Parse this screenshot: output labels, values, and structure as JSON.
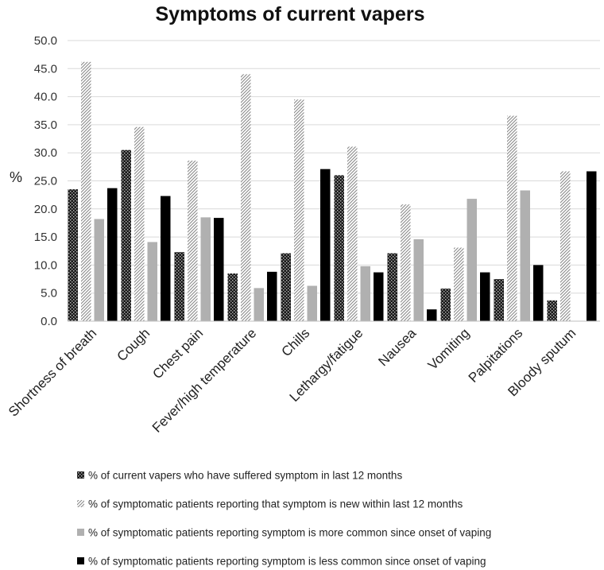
{
  "chart_data": {
    "type": "bar",
    "title": "Symptoms of current vapers",
    "xlabel": "",
    "ylabel": "%",
    "ylim": [
      0,
      50
    ],
    "yticks": [
      "0.0",
      "5.0",
      "10.0",
      "15.0",
      "20.0",
      "25.0",
      "30.0",
      "35.0",
      "40.0",
      "45.0",
      "50.0"
    ],
    "grid": true,
    "legend_position": "bottom",
    "categories": [
      "Shortness of breath",
      "Cough",
      "Chest pain",
      "Fever/high temperature",
      "Chills",
      "Lethargy/fatigue",
      "Nausea",
      "Vomiting",
      "Palpitations",
      "Bloody sputum"
    ],
    "series": [
      {
        "name": "% of current vapers who have suffered symptom in last 12 months",
        "pattern": "crosshatch",
        "color": "#1a1a1a",
        "values": [
          23.5,
          30.5,
          12.3,
          8.5,
          12.1,
          26.0,
          12.1,
          5.8,
          7.5,
          3.7
        ]
      },
      {
        "name": "% of symptomatic patients reporting that symptom is new within last 12 months",
        "pattern": "diagonal",
        "color": "#9a9a9a",
        "values": [
          46.2,
          34.6,
          28.6,
          44.0,
          39.5,
          31.1,
          20.8,
          13.1,
          36.6,
          26.7
        ]
      },
      {
        "name": "% of symptomatic patients reporting symptom is more common since onset of vaping",
        "pattern": "solid",
        "color": "#b0b0b0",
        "values": [
          18.2,
          14.1,
          18.5,
          5.9,
          6.3,
          9.8,
          14.6,
          21.8,
          23.3,
          0
        ]
      },
      {
        "name": "% of symptomatic patients reporting symptom is less common since onset of vaping",
        "pattern": "solid",
        "color": "#000000",
        "values": [
          23.7,
          22.3,
          18.4,
          8.8,
          27.1,
          8.7,
          2.1,
          8.7,
          10.0,
          26.7
        ]
      }
    ]
  }
}
